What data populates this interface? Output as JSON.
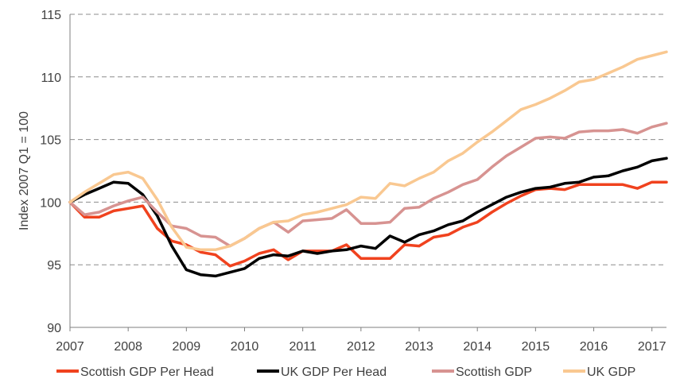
{
  "chart_data": {
    "type": "line",
    "title": "",
    "xlabel": "",
    "ylabel": "Index 2007 Q1 = 100",
    "ylim": [
      90,
      115
    ],
    "yticks": [
      "90",
      "95",
      "100",
      "105",
      "110",
      "115"
    ],
    "xlim": [
      2007,
      2017.25
    ],
    "xticks": [
      "2007",
      "2008",
      "2009",
      "2010",
      "2011",
      "2012",
      "2013",
      "2014",
      "2015",
      "2016",
      "2017"
    ],
    "grid": "horizontal-dashed",
    "legend_position": "bottom",
    "x": [
      2007.0,
      2007.25,
      2007.5,
      2007.75,
      2008.0,
      2008.25,
      2008.5,
      2008.75,
      2009.0,
      2009.25,
      2009.5,
      2009.75,
      2010.0,
      2010.25,
      2010.5,
      2010.75,
      2011.0,
      2011.25,
      2011.5,
      2011.75,
      2012.0,
      2012.25,
      2012.5,
      2012.75,
      2013.0,
      2013.25,
      2013.5,
      2013.75,
      2014.0,
      2014.25,
      2014.5,
      2014.75,
      2015.0,
      2015.25,
      2015.5,
      2015.75,
      2016.0,
      2016.25,
      2016.5,
      2016.75,
      2017.0,
      2017.25
    ],
    "series": [
      {
        "name": "Scottish GDP Per Head",
        "color": "#f0421e",
        "values": [
          100.0,
          98.8,
          98.8,
          99.3,
          99.5,
          99.7,
          97.9,
          96.9,
          96.6,
          96.0,
          95.8,
          94.9,
          95.3,
          95.9,
          96.2,
          95.4,
          96.1,
          96.1,
          96.1,
          96.6,
          95.5,
          95.5,
          95.5,
          96.6,
          96.5,
          97.2,
          97.4,
          98.0,
          98.4,
          99.2,
          99.9,
          100.5,
          101.0,
          101.1,
          101.0,
          101.4,
          101.4,
          101.4,
          101.4,
          101.1,
          101.6,
          101.6
        ]
      },
      {
        "name": "UK GDP Per Head",
        "color": "#000000",
        "values": [
          100.0,
          100.6,
          101.1,
          101.6,
          101.5,
          100.6,
          98.9,
          96.5,
          94.6,
          94.2,
          94.1,
          94.4,
          94.7,
          95.5,
          95.8,
          95.7,
          96.1,
          95.9,
          96.1,
          96.2,
          96.5,
          96.3,
          97.3,
          96.8,
          97.4,
          97.7,
          98.2,
          98.5,
          99.2,
          99.8,
          100.4,
          100.8,
          101.1,
          101.2,
          101.5,
          101.6,
          102.0,
          102.1,
          102.5,
          102.8,
          103.3,
          103.5
        ]
      },
      {
        "name": "Scottish GDP",
        "color": "#d79391",
        "values": [
          100.0,
          99.0,
          99.2,
          99.7,
          100.1,
          100.4,
          99.2,
          98.1,
          97.9,
          97.3,
          97.2,
          96.5,
          97.1,
          97.9,
          98.4,
          97.6,
          98.5,
          98.6,
          98.7,
          99.4,
          98.3,
          98.3,
          98.4,
          99.5,
          99.6,
          100.3,
          100.8,
          101.4,
          101.8,
          102.8,
          103.7,
          104.4,
          105.1,
          105.2,
          105.1,
          105.6,
          105.7,
          105.7,
          105.8,
          105.5,
          106.0,
          106.3
        ]
      },
      {
        "name": "UK GDP",
        "color": "#f9c891",
        "values": [
          100.0,
          100.8,
          101.5,
          102.2,
          102.4,
          101.9,
          100.2,
          98.0,
          96.4,
          96.2,
          96.2,
          96.5,
          97.1,
          97.9,
          98.4,
          98.5,
          99.0,
          99.2,
          99.5,
          99.8,
          100.4,
          100.3,
          101.5,
          101.3,
          101.9,
          102.4,
          103.3,
          103.9,
          104.8,
          105.6,
          106.5,
          107.4,
          107.8,
          108.3,
          108.9,
          109.6,
          109.8,
          110.3,
          110.8,
          111.4,
          111.7,
          112.0
        ]
      }
    ]
  }
}
